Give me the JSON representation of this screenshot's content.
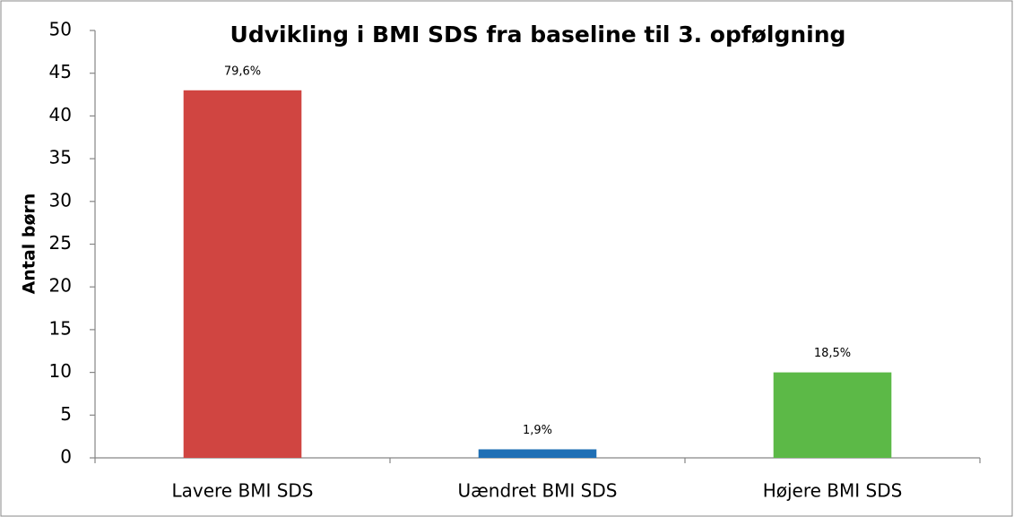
{
  "chart_data": {
    "type": "bar",
    "title": "Udvikling i BMI SDS fra baseline til 3. opfølgning",
    "y_label": "Antal børn",
    "categories": [
      "Lavere BMI SDS",
      "Uændret BMI SDS",
      "Højere BMI SDS"
    ],
    "values": [
      43,
      1,
      10
    ],
    "annotations": [
      "79,6%",
      "1,9%",
      "18,5%"
    ],
    "colors": [
      "#d04541",
      "#1f6fb5",
      "#5cb947"
    ],
    "ylim": [
      0,
      50
    ],
    "yticks": [
      0,
      5,
      10,
      15,
      20,
      25,
      30,
      35,
      40,
      45,
      50
    ],
    "grid": false
  }
}
